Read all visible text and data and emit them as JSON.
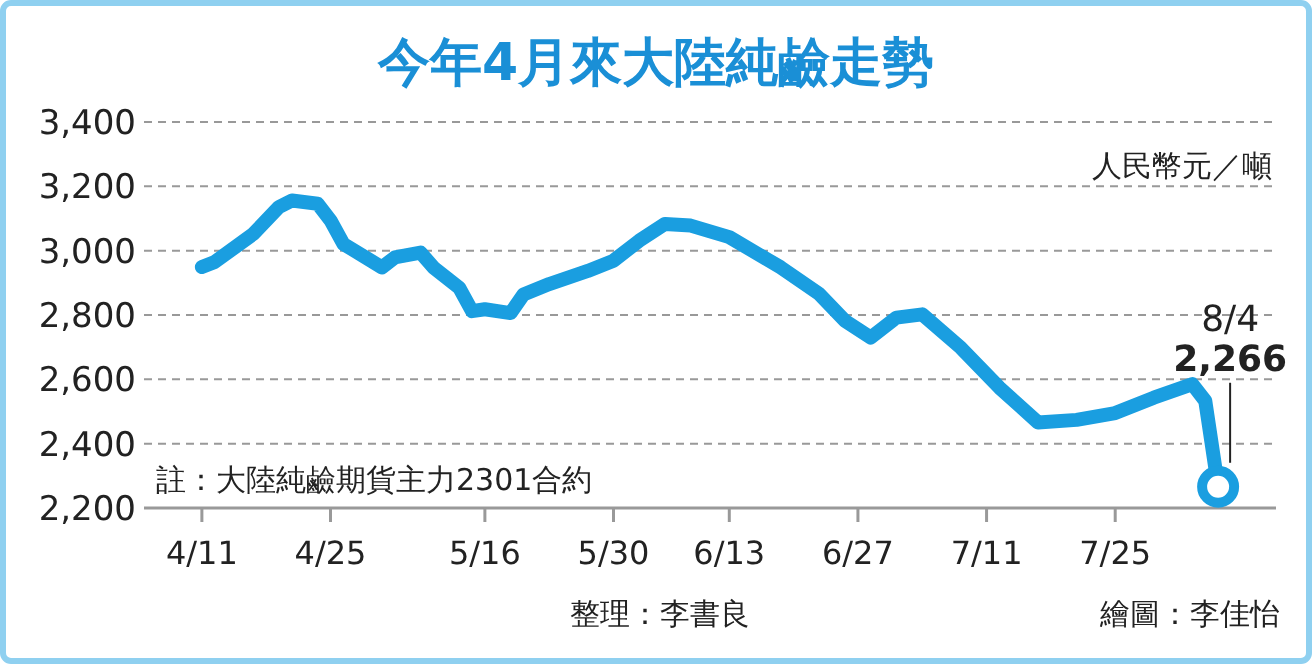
{
  "chart_data": {
    "type": "line",
    "title": "今年4月來大陸純鹼走勢",
    "ylabel": "人民幣元／噸",
    "categories": [
      "4/11",
      null,
      null,
      null,
      null,
      null,
      null,
      null,
      null,
      null,
      "4/25",
      null,
      null,
      null,
      null,
      null,
      null,
      null,
      null,
      null,
      null,
      null,
      "5/16",
      null,
      null,
      null,
      null,
      null,
      null,
      null,
      null,
      null,
      "5/30",
      null,
      null,
      null,
      null,
      null,
      null,
      null,
      null,
      "6/13",
      null,
      null,
      null,
      null,
      null,
      null,
      null,
      null,
      null,
      "6/27",
      null,
      null,
      null,
      null,
      null,
      null,
      null,
      null,
      null,
      "7/11",
      null,
      null,
      null,
      null,
      null,
      null,
      null,
      null,
      null,
      "7/25",
      null,
      null,
      null,
      null,
      null,
      null,
      null,
      null
    ],
    "series": [
      {
        "color": "#1a9ee0",
        "values": [
          2949,
          2965,
          null,
          null,
          3052,
          null,
          3136,
          3156,
          null,
          3146,
          3094,
          3021,
          null,
          null,
          2948,
          2979,
          null,
          2994,
          2948,
          null,
          2885,
          2812,
          2818,
          null,
          2806,
          2864,
          null,
          2896,
          null,
          null,
          2937,
          null,
          2969,
          null,
          3031,
          null,
          3083,
          null,
          3078,
          null,
          null,
          3042,
          null,
          null,
          null,
          2948,
          null,
          null,
          2865,
          null,
          2782,
          null,
          2730,
          null,
          2792,
          null,
          2802,
          null,
          null,
          2698,
          null,
          null,
          2574,
          null,
          null,
          2466,
          null,
          null,
          2474,
          null,
          null,
          2495,
          null,
          null,
          2543,
          null,
          null,
          2585,
          2533,
          2266
        ]
      }
    ],
    "yticks": [
      {
        "value": 2200,
        "label": "2,200"
      },
      {
        "value": 2400,
        "label": "2,400"
      },
      {
        "value": 2600,
        "label": "2,600"
      },
      {
        "value": 2800,
        "label": "2,800"
      },
      {
        "value": 3000,
        "label": "3,000"
      },
      {
        "value": 3200,
        "label": "3,200"
      },
      {
        "value": 3400,
        "label": "3,400"
      }
    ],
    "ylim": [
      2200,
      3400
    ],
    "grid": "y",
    "marker": "none",
    "line_style": "solid",
    "annotations": [
      {
        "text": "8/4\n2,266",
        "y": 2266
      },
      "註：大陸純鹼期貨主力2301合約",
      "整理：李書良",
      "繪圖：李佳怡"
    ]
  }
}
